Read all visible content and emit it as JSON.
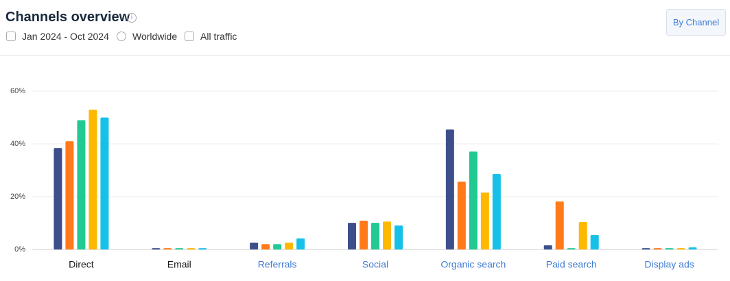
{
  "header": {
    "title": "Channels overview",
    "date_range": "Jan 2024 - Oct 2024",
    "region": "Worldwide",
    "traffic": "All traffic",
    "button": "By Channel"
  },
  "chart_data": {
    "type": "bar",
    "categories": [
      "Direct",
      "Email",
      "Referrals",
      "Social",
      "Organic search",
      "Paid search",
      "Display ads"
    ],
    "category_colors": [
      "#1a1a1a",
      "#1a1a1a",
      "#3e7bd4",
      "#3e7bd4",
      "#3e7bd4",
      "#3e7bd4",
      "#3e7bd4"
    ],
    "series": [
      {
        "color": "#3d4f8a",
        "values": [
          38.4,
          0.5,
          2.6,
          10.1,
          45.5,
          1.6,
          0.5
        ]
      },
      {
        "color": "#ff7a1a",
        "values": [
          41,
          0.5,
          2,
          10.9,
          25.7,
          18.2,
          0.5
        ]
      },
      {
        "color": "#22c993",
        "values": [
          49,
          0.5,
          2,
          10.1,
          37.1,
          0.5,
          0.5
        ]
      },
      {
        "color": "#ffb800",
        "values": [
          53,
          0.5,
          2.6,
          10.6,
          21.6,
          10.4,
          0.5
        ]
      },
      {
        "color": "#15c1e8",
        "values": [
          50,
          0.5,
          4.2,
          9.1,
          28.6,
          5.5,
          0.8
        ]
      }
    ],
    "ylim": [
      0,
      60
    ],
    "yticks": [
      {
        "value": 0,
        "label": "0%"
      },
      {
        "value": 20,
        "label": "20%"
      },
      {
        "value": 40,
        "label": "40%"
      },
      {
        "value": 60,
        "label": "60%"
      }
    ],
    "grid": true
  }
}
